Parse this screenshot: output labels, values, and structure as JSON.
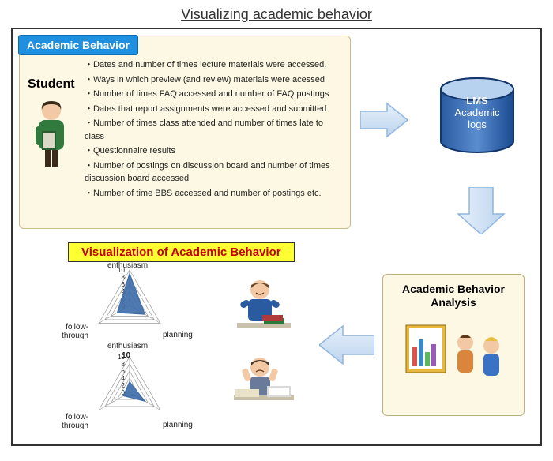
{
  "page": {
    "title": "Visualizing academic behavior"
  },
  "behavior": {
    "header": "Academic Behavior",
    "student_label": "Student",
    "bullets": {
      "b1": "・Dates and number of times lecture materials were accessed.",
      "b2": "・Ways in which preview (and review) materials were acessed",
      "b3": "・Number of times FAQ accessed and number of  FAQ   postings",
      "b4": "・Dates that report assignments were accessed  and submitted",
      "b5": "・Number of times class attended and number of times late to class",
      "b6": "・Questionnaire results",
      "b7": "・Number of postings on discussion board and   number of  times discussion board accessed",
      "b8": "・Number of time BBS accessed and number of  postings etc."
    }
  },
  "viz": {
    "header": "Visualization of Academic Behavior"
  },
  "radar": {
    "type": "radar",
    "axes": [
      "enthusiasm",
      "planning",
      "follow-through"
    ],
    "max": 10,
    "ticks": [
      0,
      2,
      4,
      6,
      8,
      10
    ],
    "grid_color": "#999999",
    "label_fontsize_pt": 9,
    "tick_fontsize_pt": 8,
    "series": [
      {
        "name": "chart1",
        "values": {
          "enthusiasm": 9,
          "planning": 5,
          "follow-through": 4
        },
        "fill_color": "#3c6aa8",
        "fill_opacity": 0.9,
        "center": [
          140,
          50
        ],
        "radius_px": 45,
        "labels": {
          "top": "enthusiasm",
          "right": "planning",
          "left": "follow-through",
          "bottom": "enthusiasm"
        }
      },
      {
        "name": "chart2",
        "values": {
          "enthusiasm": 3,
          "planning": 5,
          "follow-through": 2
        },
        "fill_color": "#3c6aa8",
        "fill_opacity": 0.9,
        "center": [
          140,
          160
        ],
        "radius_px": 45,
        "labels": {
          "top": "10",
          "right": "planning",
          "left": "follow-through"
        }
      }
    ]
  },
  "lms": {
    "line1": "LMS",
    "line2": "Academic",
    "line3": "logs",
    "fill_top": "#b7d2ef",
    "fill_mid": "#3a72c4",
    "fill_bottom": "#1a4a90",
    "stroke": "#12356a"
  },
  "analysis": {
    "title": "Academic Behavior Analysis"
  },
  "arrow_style": {
    "fill_light": "#e6f0fb",
    "fill_dark": "#bcd4ee",
    "stroke": "#8fb5df"
  },
  "colors": {
    "page_bg": "#ffffff",
    "panel_bg": "#fdf8e3",
    "panel_border": "#c8bc82",
    "header_bg": "#1f8fe0",
    "header_border": "#0f6bb0",
    "viz_bg": "#ffff33",
    "viz_text": "#c00000",
    "main_border": "#333333"
  }
}
